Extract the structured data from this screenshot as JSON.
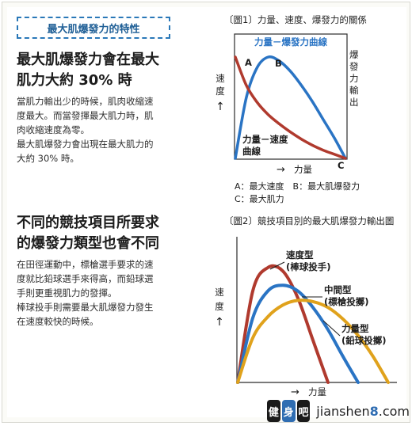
{
  "left": {
    "tag": "最大肌爆發力的特性",
    "section1": {
      "heading_line1": "最大肌爆發力會在最大",
      "heading_line2": "肌力大約 30% 時",
      "lines": [
        "當肌力輸出少的時候，肌肉收縮速",
        "度最大。而當發揮最大肌力時，肌",
        "肉收縮速度為零。",
        "最大肌爆發力會出現在最大肌力的",
        "大約 30% 時。"
      ]
    },
    "section2": {
      "heading_line1": "不同的競技項目所要求",
      "heading_line2": "的爆發力類型也會不同",
      "lines": [
        "在田徑運動中，標槍選手要求的速",
        "度就比鉛球選手來得高，而鉛球選",
        "手則更重視肌力的發揮。",
        "棒球投手則需要最大肌爆發力發生",
        "在速度較快的時候。"
      ]
    }
  },
  "figure1": {
    "title": "〔圖1〕力量、速度、爆發力的關係",
    "inner_title": "力量－爆發力曲線",
    "label_force_velocity_1": "力量－速度",
    "label_force_velocity_2": "曲線",
    "point_a": "A",
    "point_b": "B",
    "point_c": "C",
    "y_left_1": "速",
    "y_left_2": "度",
    "y_left_arrow": "↑",
    "y_right_chars": [
      "爆",
      "發",
      "力",
      "輸",
      "出"
    ],
    "x_label": "力量",
    "x_arrow": "→",
    "legend_line1": "A：最大速度　B：最大肌爆發力",
    "legend_line2": "C：最大肌力",
    "colors": {
      "power": "#2a74c4",
      "velocity": "#b03a2e"
    },
    "chart_data": {
      "type": "line",
      "xlabel": "力量",
      "ylabel": "速度",
      "series": [
        {
          "name": "力量－爆發力曲線",
          "x": [
            0,
            0.1,
            0.2,
            0.3,
            0.4,
            0.5,
            0.6,
            0.7,
            0.8,
            0.9,
            1.0
          ],
          "values": [
            0,
            0.6,
            0.9,
            1.0,
            0.96,
            0.86,
            0.72,
            0.56,
            0.38,
            0.2,
            0
          ]
        },
        {
          "name": "力量－速度曲線",
          "x": [
            0,
            0.1,
            0.2,
            0.3,
            0.4,
            0.5,
            0.6,
            0.7,
            0.8,
            0.9,
            1.0
          ],
          "values": [
            1.0,
            0.72,
            0.55,
            0.43,
            0.34,
            0.26,
            0.19,
            0.13,
            0.08,
            0.04,
            0
          ]
        }
      ],
      "annotations": [
        "A",
        "B",
        "C"
      ]
    }
  },
  "figure2": {
    "title": "〔圖2〕競技項目別的最大肌爆發力輸出圖",
    "y_1": "速",
    "y_2": "度",
    "y_arrow": "↑",
    "x_label": "力量",
    "x_arrow": "→",
    "series_labels": [
      {
        "l1": "速度型",
        "l2": "(棒球投手)"
      },
      {
        "l1": "中間型",
        "l2": "(標槍投擲)"
      },
      {
        "l1": "力量型",
        "l2": "(鉛球投擲)"
      }
    ],
    "colors": {
      "speed": "#b03a2e",
      "middle": "#2a74c4",
      "power": "#e0a21c"
    },
    "chart_data": {
      "type": "line",
      "xlabel": "力量",
      "ylabel": "速度",
      "series": [
        {
          "name": "速度型(棒球投手)",
          "x": [
            0,
            0.1,
            0.2,
            0.3,
            0.4,
            0.5,
            0.6
          ],
          "values": [
            0,
            0.78,
            0.98,
            0.95,
            0.72,
            0.36,
            0
          ]
        },
        {
          "name": "中間型(標槍投擲)",
          "x": [
            0,
            0.1,
            0.2,
            0.3,
            0.4,
            0.5,
            0.6,
            0.7,
            0.8
          ],
          "values": [
            0,
            0.55,
            0.78,
            0.83,
            0.78,
            0.64,
            0.45,
            0.22,
            0
          ]
        },
        {
          "name": "力量型(鉛球投擲)",
          "x": [
            0,
            0.1,
            0.2,
            0.3,
            0.4,
            0.5,
            0.6,
            0.7,
            0.8,
            0.9,
            1.0
          ],
          "values": [
            0,
            0.38,
            0.56,
            0.66,
            0.7,
            0.69,
            0.64,
            0.54,
            0.4,
            0.22,
            0
          ]
        }
      ]
    }
  },
  "watermark": {
    "badge_1": "健",
    "badge_2": "身",
    "badge_3": "吧",
    "site_prefix": "jianshen",
    "site_digit": "8",
    "site_suffix": ".com"
  }
}
